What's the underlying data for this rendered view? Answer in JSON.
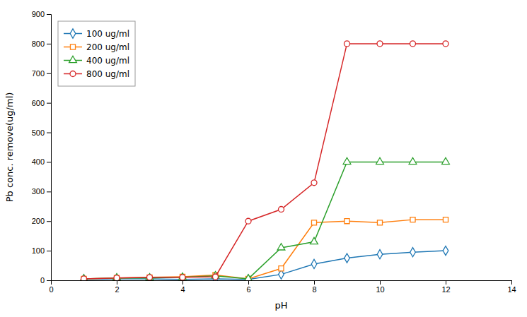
{
  "chart_data": {
    "type": "line",
    "xlabel": "pH",
    "ylabel": "Pb conc. remove(ug/ml)",
    "x": [
      1,
      2,
      3,
      4,
      5,
      6,
      7,
      8,
      9,
      10,
      11,
      12
    ],
    "series": [
      {
        "name": "100 ug/ml",
        "marker": "diamond",
        "values": [
          3,
          5,
          5,
          3,
          5,
          3,
          20,
          55,
          75,
          88,
          95,
          100
        ]
      },
      {
        "name": "200 ug/ml",
        "marker": "square",
        "values": [
          5,
          8,
          10,
          12,
          18,
          5,
          40,
          195,
          200,
          195,
          205,
          205
        ]
      },
      {
        "name": "400 ug/ml",
        "marker": "triangle",
        "values": [
          5,
          8,
          8,
          10,
          15,
          5,
          110,
          130,
          400,
          400,
          400,
          400
        ]
      },
      {
        "name": "800 ug/ml",
        "marker": "circle",
        "values": [
          5,
          8,
          10,
          10,
          12,
          200,
          240,
          330,
          800,
          800,
          800,
          800
        ]
      }
    ],
    "xlim": [
      0,
      14
    ],
    "xticks": [
      0,
      2,
      4,
      6,
      8,
      10,
      12,
      14
    ],
    "ylim": [
      0,
      900
    ],
    "yticks": [
      0,
      100,
      200,
      300,
      400,
      500,
      600,
      700,
      800,
      900
    ],
    "legend": "upper left",
    "grid": false
  }
}
